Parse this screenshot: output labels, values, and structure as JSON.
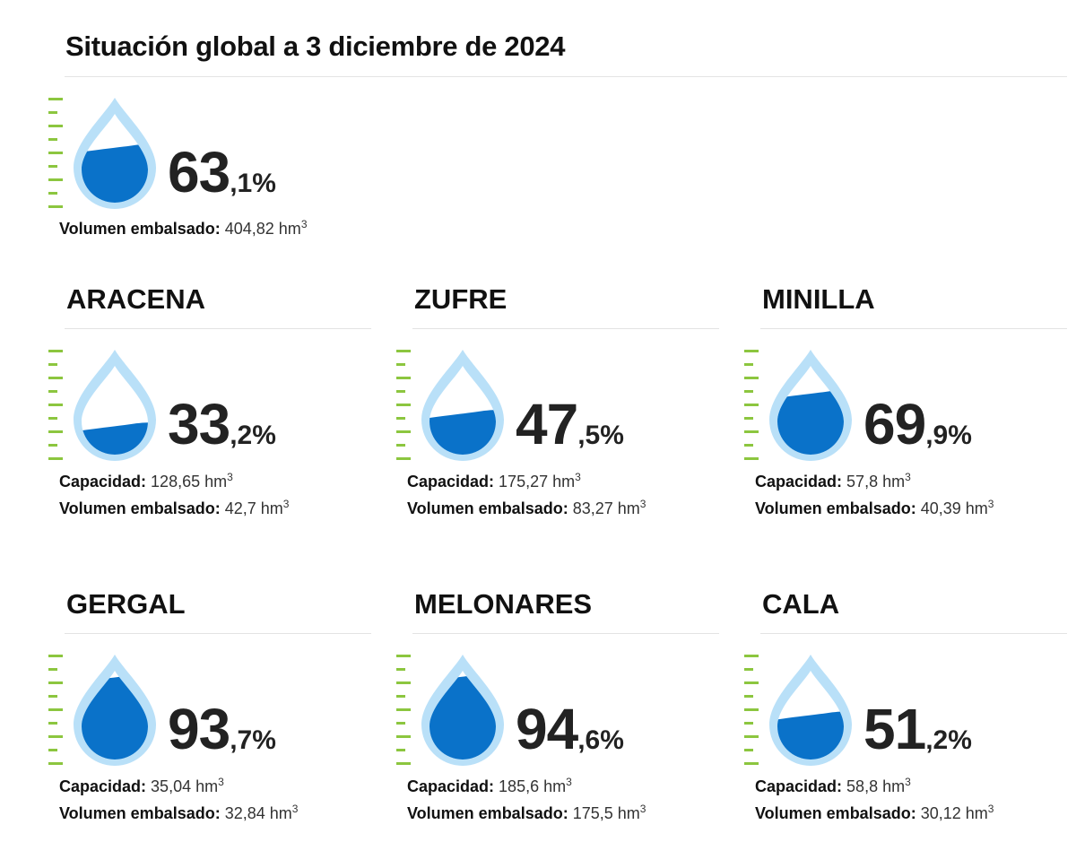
{
  "title": "Situación global a 3 diciembre de 2024",
  "colors": {
    "fill": "#0a72c9",
    "outline": "#b9e0f8",
    "ticks": "#8cc63f"
  },
  "labels": {
    "capacity": "Capacidad:",
    "volume": "Volumen embalsado:",
    "unit": "hm",
    "unit_exp": "3"
  },
  "global": {
    "pct_int": "63",
    "pct_dec": ",1%",
    "pct": 63.1,
    "volume": "404,82"
  },
  "reservoirs": [
    {
      "name": "ARACENA",
      "pct_int": "33",
      "pct_dec": ",2%",
      "pct": 33.2,
      "capacity": "128,65",
      "volume": "42,7"
    },
    {
      "name": "ZUFRE",
      "pct_int": "47",
      "pct_dec": ",5%",
      "pct": 47.5,
      "capacity": "175,27",
      "volume": "83,27"
    },
    {
      "name": "MINILLA",
      "pct_int": "69",
      "pct_dec": ",9%",
      "pct": 69.9,
      "capacity": "57,8",
      "volume": "40,39"
    },
    {
      "name": "GERGAL",
      "pct_int": "93",
      "pct_dec": ",7%",
      "pct": 93.7,
      "capacity": "35,04",
      "volume": "32,84"
    },
    {
      "name": "MELONARES",
      "pct_int": "94",
      "pct_dec": ",6%",
      "pct": 94.6,
      "capacity": "185,6",
      "volume": "175,5"
    },
    {
      "name": "CALA",
      "pct_int": "51",
      "pct_dec": ",2%",
      "pct": 51.2,
      "capacity": "58,8",
      "volume": "30,12"
    }
  ]
}
